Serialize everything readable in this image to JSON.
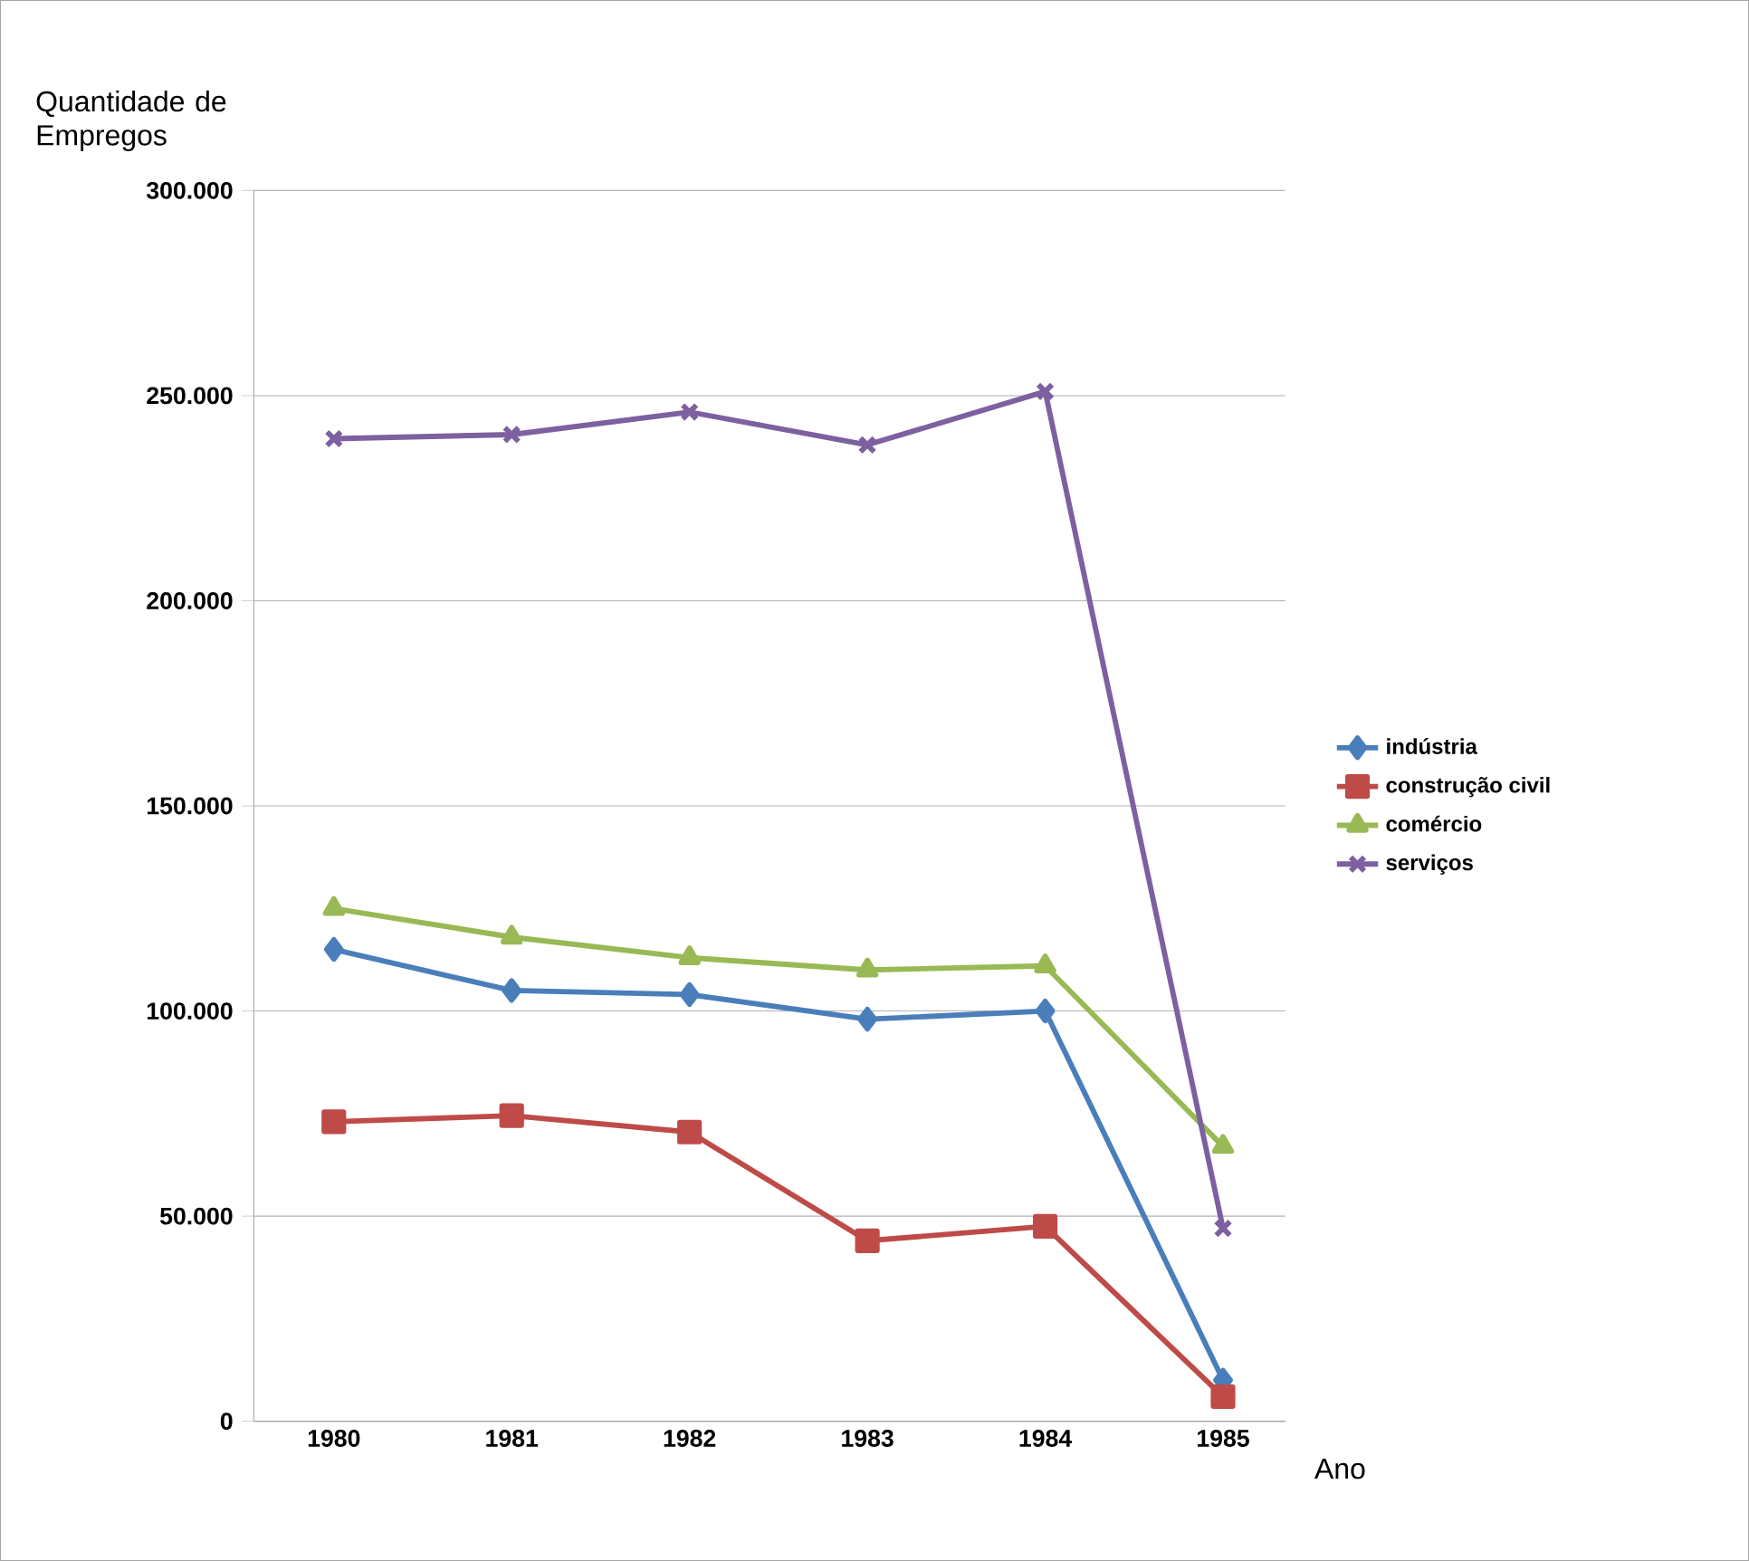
{
  "chart_data": {
    "type": "line",
    "xlabel": "Ano",
    "ylabel": "Quantidade de Empregos",
    "categories": [
      "1980",
      "1981",
      "1982",
      "1983",
      "1984",
      "1985"
    ],
    "series": [
      {
        "name": "indústria",
        "color": "#4a7ebb",
        "marker": "diamond",
        "values": [
          115000,
          105000,
          104000,
          98000,
          100000,
          10000
        ]
      },
      {
        "name": "construção civil",
        "color": "#be4b48",
        "marker": "square",
        "values": [
          73000,
          74500,
          70500,
          44000,
          47500,
          6000
        ]
      },
      {
        "name": "comércio",
        "color": "#98b954",
        "marker": "triangle",
        "values": [
          125000,
          118000,
          113000,
          110000,
          111000,
          67000
        ]
      },
      {
        "name": "serviços",
        "color": "#7d60a0",
        "marker": "cross",
        "values": [
          239500,
          240500,
          246000,
          238000,
          251000,
          47000
        ]
      }
    ],
    "ylim": [
      0,
      300000
    ],
    "yticks": [
      {
        "value": 0,
        "label": "0"
      },
      {
        "value": 50000,
        "label": "50.000"
      },
      {
        "value": 100000,
        "label": "100.000"
      },
      {
        "value": 150000,
        "label": "150.000"
      },
      {
        "value": 200000,
        "label": "200.000"
      },
      {
        "value": 250000,
        "label": "250.000"
      },
      {
        "value": 300000,
        "label": "300.000"
      }
    ],
    "grid": "y",
    "legend": "right",
    "line_style": "solid"
  }
}
